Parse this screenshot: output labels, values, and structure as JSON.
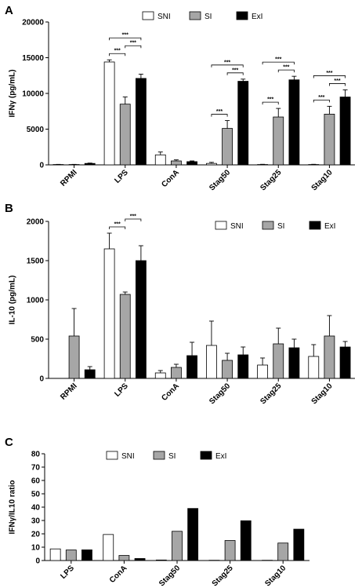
{
  "colors": {
    "SNI": "#ffffff",
    "SI": "#a6a6a6",
    "ExI": "#000000",
    "axis": "#000000"
  },
  "chart_data": [
    {
      "type": "bar",
      "panel": "A",
      "ylabel": "IFNγ (pg/mL)",
      "ylim": [
        0,
        20000
      ],
      "yticks": [
        0,
        5000,
        10000,
        15000,
        20000
      ],
      "legend": "top",
      "categories": [
        "RPMI",
        "LPS",
        "ConA",
        "Stag50",
        "Stag25",
        "Stag10"
      ],
      "series": [
        {
          "name": "SNI",
          "values": [
            50,
            14400,
            1400,
            200,
            50,
            50
          ],
          "errors": [
            20,
            300,
            400,
            150,
            30,
            30
          ]
        },
        {
          "name": "SI",
          "values": [
            50,
            8500,
            550,
            5100,
            6700,
            7100
          ],
          "errors": [
            20,
            1000,
            150,
            1100,
            1200,
            1100
          ]
        },
        {
          "name": "ExI",
          "values": [
            200,
            12100,
            450,
            11700,
            11900,
            9500
          ],
          "errors": [
            50,
            600,
            100,
            300,
            500,
            1000
          ]
        }
      ],
      "significance": [
        {
          "category": "LPS",
          "from": "SNI",
          "to": "SI",
          "label": "***"
        },
        {
          "category": "LPS",
          "from": "SNI",
          "to": "ExI",
          "label": "***"
        },
        {
          "category": "LPS",
          "from": "SI",
          "to": "ExI",
          "label": "***"
        },
        {
          "category": "Stag50",
          "from": "SNI",
          "to": "SI",
          "label": "***"
        },
        {
          "category": "Stag50",
          "from": "SNI",
          "to": "ExI",
          "label": "***"
        },
        {
          "category": "Stag50",
          "from": "SI",
          "to": "ExI",
          "label": "***"
        },
        {
          "category": "Stag25",
          "from": "SNI",
          "to": "SI",
          "label": "***"
        },
        {
          "category": "Stag25",
          "from": "SNI",
          "to": "ExI",
          "label": "***"
        },
        {
          "category": "Stag25",
          "from": "SI",
          "to": "ExI",
          "label": "***"
        },
        {
          "category": "Stag10",
          "from": "SNI",
          "to": "SI",
          "label": "***"
        },
        {
          "category": "Stag10",
          "from": "SNI",
          "to": "ExI",
          "label": "***"
        },
        {
          "category": "Stag10",
          "from": "SI",
          "to": "ExI",
          "label": "***"
        }
      ]
    },
    {
      "type": "bar",
      "panel": "B",
      "ylabel": "IL-10 (pg/mL)",
      "ylim": [
        0,
        2000
      ],
      "yticks": [
        0,
        500,
        1000,
        1500,
        2000
      ],
      "legend": "top-right",
      "categories": [
        "RPMI",
        "LPS",
        "ConA",
        "Stag50",
        "Stag25",
        "Stag10"
      ],
      "series": [
        {
          "name": "SNI",
          "values": [
            0,
            1650,
            70,
            420,
            170,
            280
          ],
          "errors": [
            0,
            200,
            30,
            310,
            90,
            150
          ]
        },
        {
          "name": "SI",
          "values": [
            540,
            1070,
            140,
            230,
            440,
            540
          ],
          "errors": [
            350,
            30,
            40,
            90,
            200,
            260
          ]
        },
        {
          "name": "ExI",
          "values": [
            110,
            1500,
            290,
            300,
            390,
            400
          ],
          "errors": [
            40,
            190,
            170,
            100,
            110,
            70
          ]
        }
      ],
      "significance": [
        {
          "category": "LPS",
          "from": "SNI",
          "to": "SI",
          "label": "***"
        },
        {
          "category": "LPS",
          "from": "SI",
          "to": "ExI",
          "label": "***"
        }
      ]
    },
    {
      "type": "bar",
      "panel": "C",
      "ylabel": "IFNγ/IL10 ratio",
      "ylim": [
        0,
        80
      ],
      "yticks": [
        0,
        10,
        20,
        30,
        40,
        50,
        60,
        70,
        80
      ],
      "legend": "top",
      "categories": [
        "LPS",
        "ConA",
        "Stag50",
        "Stag25",
        "Stag10"
      ],
      "series": [
        {
          "name": "SNI",
          "values": [
            8.7,
            19.5,
            0.4,
            0.2,
            0.2
          ]
        },
        {
          "name": "SI",
          "values": [
            7.9,
            3.8,
            21.9,
            15.0,
            13.1
          ]
        },
        {
          "name": "ExI",
          "values": [
            8.0,
            1.5,
            39.0,
            29.8,
            23.5
          ]
        }
      ]
    }
  ]
}
